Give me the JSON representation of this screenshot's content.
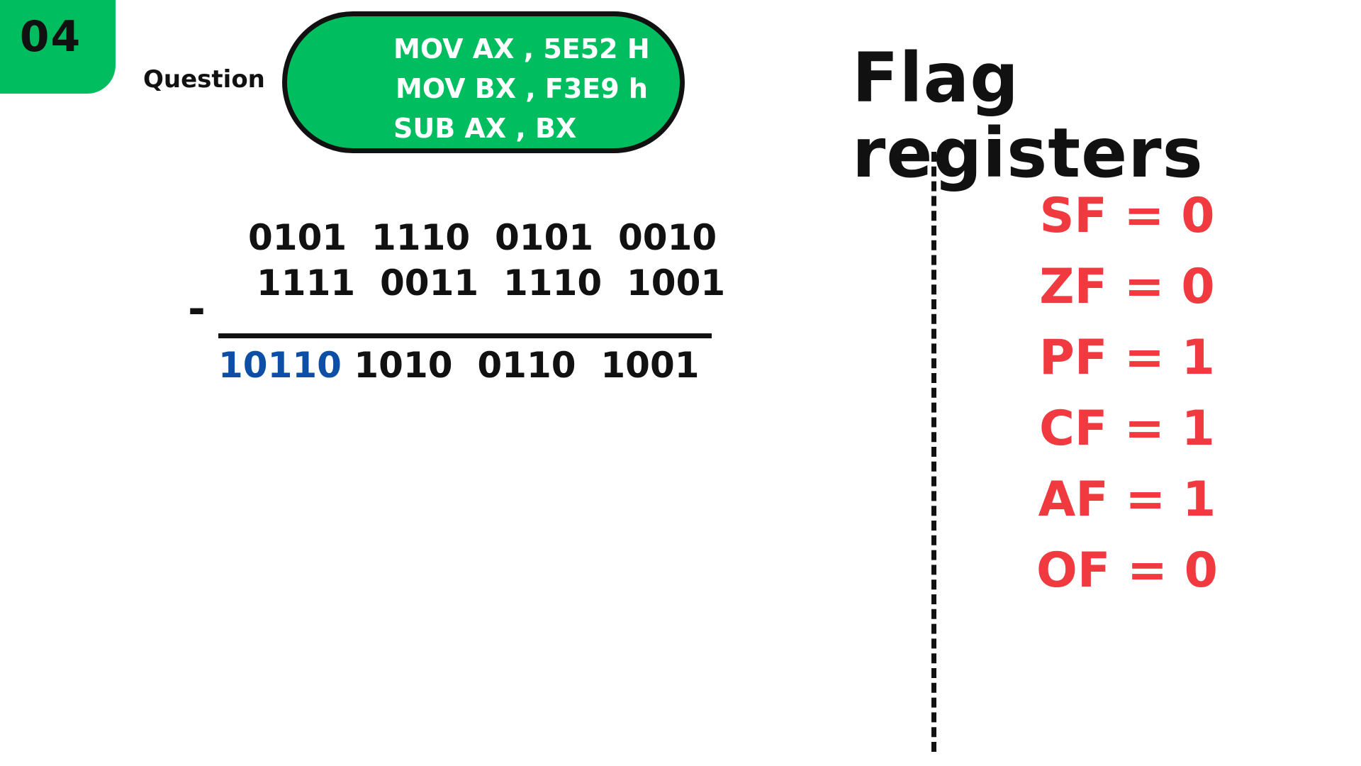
{
  "badge": {
    "number": "04",
    "color": "#00bd5f"
  },
  "question": {
    "label": "Question"
  },
  "code": {
    "fill": "#00bd5f",
    "lines": [
      "MOV AX , 5E52 H",
      "MOV BX , F3E9 h",
      "SUB AX , BX"
    ]
  },
  "subtraction": {
    "operator": "-",
    "minuend": [
      "0101",
      "1110",
      "0101",
      "0010"
    ],
    "subtrahend": [
      "1111",
      "0011",
      "1110",
      "1001"
    ],
    "result_carry": "10110",
    "result": [
      "1010",
      "0110",
      "1001"
    ],
    "carry_color": "#0d4ea6"
  },
  "flags": {
    "title": "Flag registers",
    "color": "#f03a3f",
    "items": [
      "SF = 0",
      "ZF = 0",
      "PF = 1",
      "CF = 1",
      "AF = 1",
      "OF = 0"
    ]
  }
}
